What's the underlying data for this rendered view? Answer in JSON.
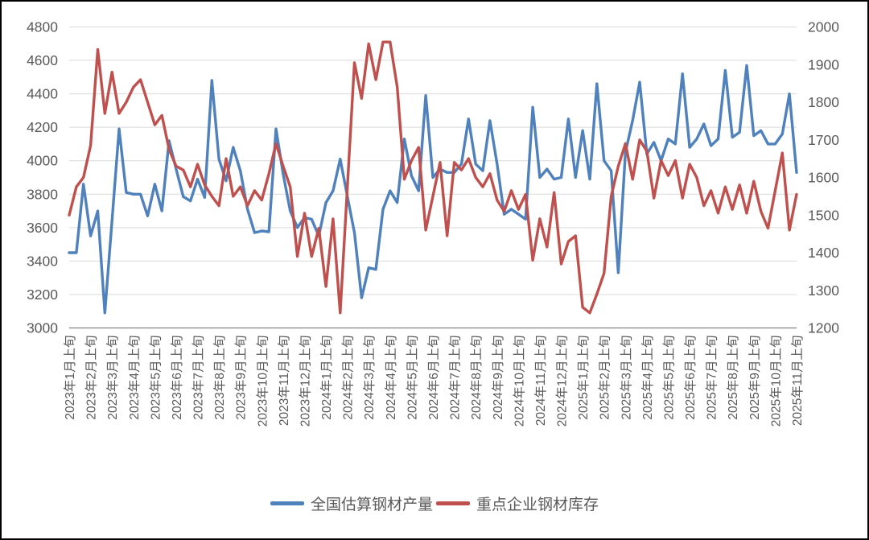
{
  "chart_data": {
    "type": "line",
    "title": "",
    "points_per_month": 3,
    "x_categories": [
      "2023年1月上旬",
      "2023年2月上旬",
      "2023年3月上旬",
      "2023年4月上旬",
      "2023年5月上旬",
      "2023年6月上旬",
      "2023年7月上旬",
      "2023年8月上旬",
      "2023年9月上旬",
      "2023年10月上旬",
      "2023年11月上旬",
      "2023年12月上旬",
      "2024年1月上旬",
      "2024年2月上旬",
      "2024年3月上旬",
      "2024年4月上旬",
      "2024年5月上旬",
      "2024年6月上旬",
      "2024年7月上旬",
      "2024年8月上旬",
      "2024年9月上旬",
      "2024年10月上旬",
      "2024年11月上旬",
      "2024年12月上旬",
      "2025年1月上旬",
      "2025年2月上旬",
      "2025年3月上旬",
      "2025年4月上旬",
      "2025年5月上旬",
      "2025年6月上旬",
      "2025年7月上旬",
      "2025年8月上旬",
      "2025年9月上旬",
      "2025年10月上旬",
      "2025年11月上旬"
    ],
    "series": [
      {
        "name": "全国估算钢材产量",
        "axis": "left",
        "color": "#4F81BD",
        "values": [
          3450,
          3450,
          3860,
          3550,
          3700,
          3090,
          3640,
          4190,
          3810,
          3800,
          3800,
          3670,
          3860,
          3700,
          4120,
          3950,
          3785,
          3760,
          3890,
          3780,
          4480,
          4010,
          3880,
          4080,
          3940,
          3710,
          3570,
          3580,
          3575,
          4190,
          3920,
          3700,
          3600,
          3660,
          3650,
          3550,
          3750,
          3820,
          4010,
          3790,
          3570,
          3180,
          3360,
          3350,
          3710,
          3820,
          3750,
          4130,
          3910,
          3820,
          4390,
          3900,
          3950,
          3930,
          3930,
          3980,
          4250,
          3980,
          3940,
          4240,
          3980,
          3680,
          3710,
          3680,
          3650,
          4320,
          3900,
          3950,
          3890,
          3900,
          4250,
          3900,
          4180,
          3890,
          4460,
          4000,
          3940,
          3330,
          4050,
          4240,
          4470,
          4040,
          4110,
          4000,
          4130,
          4100,
          4520,
          4080,
          4130,
          4220,
          4090,
          4130,
          4540,
          4140,
          4170,
          4570,
          4150,
          4180,
          4100,
          4100,
          4160,
          4400,
          3930
        ]
      },
      {
        "name": "重点企业钢材库存",
        "axis": "right",
        "color": "#C0504D",
        "values": [
          1500,
          1575,
          1600,
          1685,
          1940,
          1770,
          1880,
          1770,
          1800,
          1840,
          1860,
          1800,
          1740,
          1765,
          1675,
          1630,
          1620,
          1575,
          1635,
          1580,
          1550,
          1525,
          1650,
          1550,
          1575,
          1525,
          1565,
          1540,
          1610,
          1690,
          1630,
          1575,
          1390,
          1505,
          1390,
          1465,
          1310,
          1490,
          1240,
          1570,
          1905,
          1810,
          1955,
          1860,
          1960,
          1960,
          1840,
          1595,
          1645,
          1680,
          1460,
          1550,
          1640,
          1445,
          1640,
          1620,
          1650,
          1600,
          1575,
          1610,
          1540,
          1510,
          1565,
          1515,
          1555,
          1380,
          1490,
          1415,
          1560,
          1370,
          1430,
          1445,
          1255,
          1240,
          1290,
          1345,
          1550,
          1630,
          1690,
          1595,
          1700,
          1670,
          1545,
          1645,
          1605,
          1645,
          1545,
          1635,
          1600,
          1525,
          1565,
          1505,
          1575,
          1515,
          1580,
          1505,
          1590,
          1510,
          1465,
          1565,
          1665,
          1460,
          1555
        ]
      }
    ],
    "left_axis": {
      "min": 3000,
      "max": 4800,
      "step": 200,
      "tick_labels": [
        "4800",
        "4600",
        "4400",
        "4200",
        "4000",
        "3800",
        "3600",
        "3400",
        "3200",
        "3000"
      ]
    },
    "right_axis": {
      "min": 1200,
      "max": 2000,
      "step": 100,
      "tick_labels": [
        "2000",
        "1900",
        "1800",
        "1700",
        "1600",
        "1500",
        "1400",
        "1300",
        "1200"
      ]
    },
    "grid": true,
    "legend_position": "bottom"
  },
  "legend": {
    "items": [
      {
        "label": "全国估算钢材产量",
        "color": "#4F81BD"
      },
      {
        "label": "重点企业钢材库存",
        "color": "#C0504D"
      }
    ]
  },
  "style": {
    "gridline_color": "#D9D9D9",
    "axis_line_color": "#808080",
    "tick_text_color": "#595959",
    "frame_border_color": "#000000",
    "background": "#FFFFFF"
  }
}
